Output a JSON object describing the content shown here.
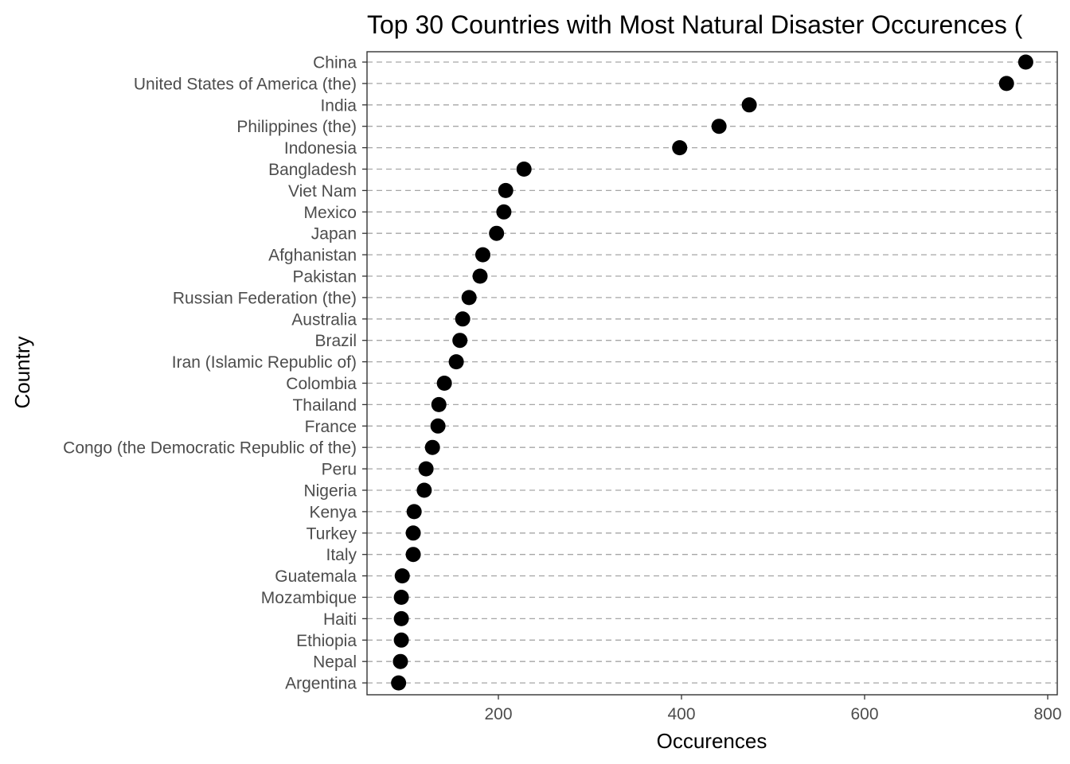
{
  "chart_data": {
    "type": "scatter",
    "title": "Top 30 Countries with Most Natural Disaster Occurences (",
    "xlabel": "Occurences",
    "ylabel": "Country",
    "xlim": [
      60,
      810
    ],
    "xticks": [
      200,
      400,
      600,
      800
    ],
    "grid": "horizontal dashed",
    "legend": "none",
    "categories": [
      "China",
      "United States of America (the)",
      "India",
      "Philippines (the)",
      "Indonesia",
      "Bangladesh",
      "Viet Nam",
      "Mexico",
      "Japan",
      "Afghanistan",
      "Pakistan",
      "Russian Federation (the)",
      "Australia",
      "Brazil",
      "Iran (Islamic Republic of)",
      "Colombia",
      "Thailand",
      "France",
      "Congo (the Democratic Republic of the)",
      "Peru",
      "Nigeria",
      "Kenya",
      "Turkey",
      "Italy",
      "Guatemala",
      "Mozambique",
      "Haiti",
      "Ethiopia",
      "Nepal",
      "Argentina"
    ],
    "values": [
      776,
      755,
      474,
      441,
      398,
      228,
      208,
      206,
      198,
      183,
      180,
      168,
      161,
      158,
      154,
      141,
      135,
      134,
      128,
      121,
      119,
      108,
      107,
      107,
      95,
      94,
      94,
      94,
      93,
      91
    ]
  }
}
